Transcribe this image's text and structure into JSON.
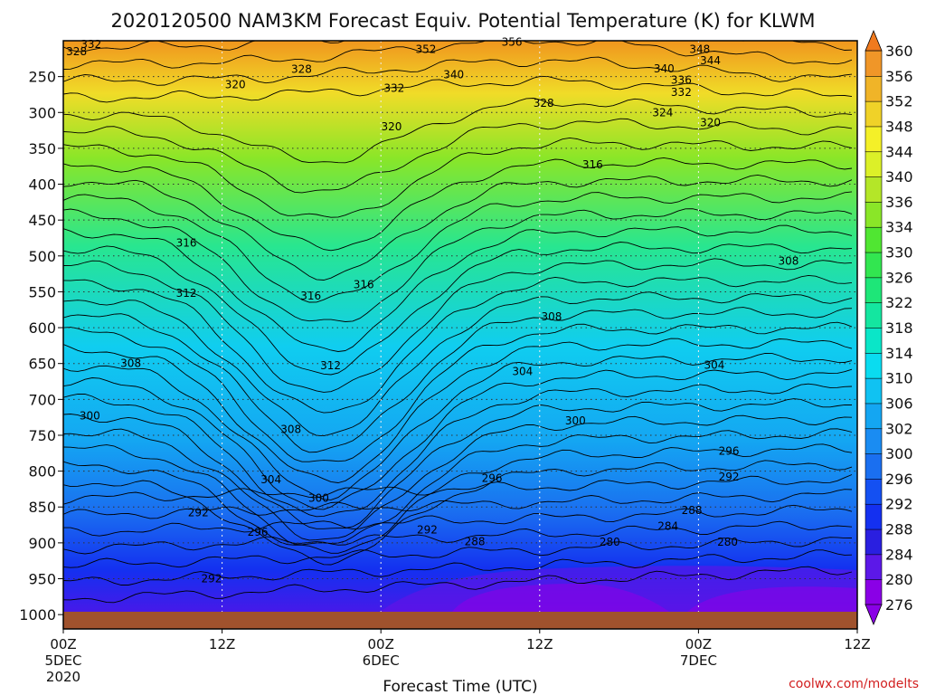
{
  "chart_data": {
    "type": "contour",
    "title": "2020120500 NAM3KM Forecast Equiv. Potential Temperature (K) for KLWM",
    "xlabel": "Forecast Time (UTC)",
    "ylabel": "",
    "credit": "coolwx.com/modelts",
    "x_ticks": [
      {
        "hour": 0,
        "lines": [
          "00Z",
          "5DEC",
          "2020"
        ]
      },
      {
        "hour": 12,
        "lines": [
          "12Z"
        ]
      },
      {
        "hour": 24,
        "lines": [
          "00Z",
          "6DEC"
        ]
      },
      {
        "hour": 36,
        "lines": [
          "12Z"
        ]
      },
      {
        "hour": 48,
        "lines": [
          "00Z",
          "7DEC"
        ]
      },
      {
        "hour": 60,
        "lines": [
          "12Z"
        ]
      }
    ],
    "xlim": [
      0,
      60
    ],
    "y_ticks": [
      250,
      300,
      350,
      400,
      450,
      500,
      550,
      600,
      650,
      700,
      750,
      800,
      850,
      900,
      950,
      1000
    ],
    "ylim": [
      200,
      1020
    ],
    "colorbar": {
      "levels": [
        276,
        280,
        284,
        288,
        292,
        296,
        300,
        302,
        306,
        310,
        314,
        318,
        322,
        326,
        330,
        334,
        336,
        340,
        344,
        348,
        352,
        356,
        360
      ],
      "colors": [
        "#8a00e6",
        "#5c18e8",
        "#2a1fe0",
        "#1430f0",
        "#1450f2",
        "#1a6ff0",
        "#1a8cf2",
        "#14a6f2",
        "#10c2f2",
        "#0adcf0",
        "#0ae6c8",
        "#14e6a0",
        "#1ee678",
        "#32e650",
        "#50e632",
        "#8ae628",
        "#b4e628",
        "#dcf028",
        "#f4f028",
        "#f0d228",
        "#f0b428",
        "#f09628",
        "#f07a1e"
      ]
    },
    "contour_labels": [
      {
        "value": 332,
        "x": 2.1,
        "p": 205
      },
      {
        "value": 328,
        "x": 1.0,
        "p": 215
      },
      {
        "value": 356,
        "x": 33.9,
        "p": 202
      },
      {
        "value": 352,
        "x": 27.4,
        "p": 212
      },
      {
        "value": 348,
        "x": 48.1,
        "p": 212
      },
      {
        "value": 344,
        "x": 48.9,
        "p": 228
      },
      {
        "value": 340,
        "x": 29.5,
        "p": 247
      },
      {
        "value": 340,
        "x": 45.4,
        "p": 239
      },
      {
        "value": 336,
        "x": 46.7,
        "p": 255
      },
      {
        "value": 332,
        "x": 25.0,
        "p": 266
      },
      {
        "value": 332,
        "x": 46.7,
        "p": 272
      },
      {
        "value": 328,
        "x": 18.0,
        "p": 240
      },
      {
        "value": 328,
        "x": 36.3,
        "p": 287
      },
      {
        "value": 324,
        "x": 45.3,
        "p": 300
      },
      {
        "value": 320,
        "x": 13.0,
        "p": 261
      },
      {
        "value": 320,
        "x": 24.8,
        "p": 320
      },
      {
        "value": 320,
        "x": 48.9,
        "p": 314
      },
      {
        "value": 316,
        "x": 40.0,
        "p": 373
      },
      {
        "value": 316,
        "x": 9.3,
        "p": 482
      },
      {
        "value": 316,
        "x": 18.7,
        "p": 556
      },
      {
        "value": 316,
        "x": 22.7,
        "p": 540
      },
      {
        "value": 312,
        "x": 9.3,
        "p": 552
      },
      {
        "value": 312,
        "x": 20.2,
        "p": 653
      },
      {
        "value": 308,
        "x": 36.9,
        "p": 585
      },
      {
        "value": 308,
        "x": 54.8,
        "p": 507
      },
      {
        "value": 308,
        "x": 5.1,
        "p": 650
      },
      {
        "value": 308,
        "x": 17.2,
        "p": 742
      },
      {
        "value": 304,
        "x": 34.7,
        "p": 661
      },
      {
        "value": 304,
        "x": 49.2,
        "p": 652
      },
      {
        "value": 304,
        "x": 15.7,
        "p": 812
      },
      {
        "value": 300,
        "x": 2.0,
        "p": 723
      },
      {
        "value": 300,
        "x": 38.7,
        "p": 730
      },
      {
        "value": 300,
        "x": 19.3,
        "p": 838
      },
      {
        "value": 296,
        "x": 32.4,
        "p": 810
      },
      {
        "value": 296,
        "x": 50.3,
        "p": 772
      },
      {
        "value": 296,
        "x": 14.7,
        "p": 885
      },
      {
        "value": 292,
        "x": 10.2,
        "p": 858
      },
      {
        "value": 292,
        "x": 27.5,
        "p": 882
      },
      {
        "value": 292,
        "x": 50.3,
        "p": 808
      },
      {
        "value": 292,
        "x": 11.2,
        "p": 950
      },
      {
        "value": 288,
        "x": 31.1,
        "p": 898
      },
      {
        "value": 288,
        "x": 47.5,
        "p": 855
      },
      {
        "value": 284,
        "x": 45.7,
        "p": 877
      },
      {
        "value": 280,
        "x": 41.3,
        "p": 899
      },
      {
        "value": 280,
        "x": 50.2,
        "p": 899
      }
    ]
  }
}
